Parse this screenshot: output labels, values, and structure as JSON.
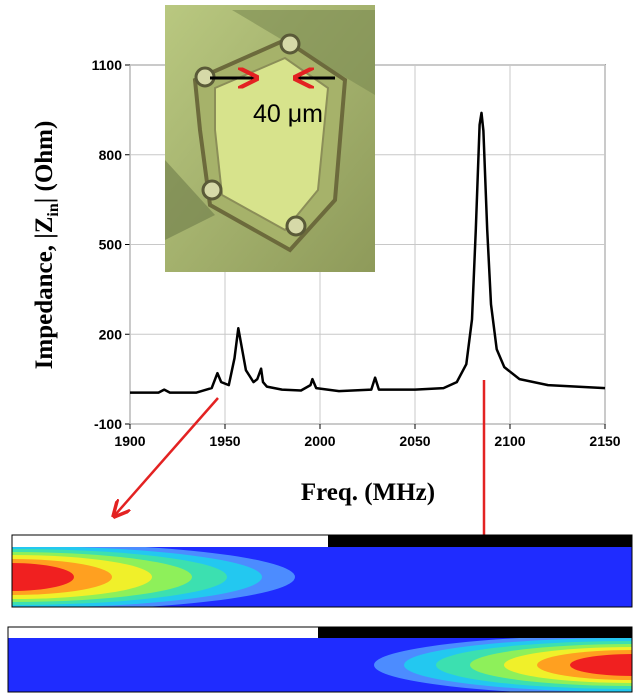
{
  "chart_data": {
    "type": "line",
    "y_label": {
      "main": "Impedance, |Z",
      "sub": "in",
      "tail": "| (Ohm)"
    },
    "x_label": "Freq. (MHz)",
    "annotation": "40 μm",
    "x": [
      1900,
      1915,
      1918,
      1921,
      1935,
      1943,
      1946,
      1948,
      1952,
      1955,
      1957,
      1959,
      1961,
      1963,
      1965,
      1967,
      1969,
      1970,
      1972,
      1980,
      1990,
      1995,
      1996,
      1998,
      2010,
      2027,
      2029,
      2031,
      2050,
      2065,
      2072,
      2077,
      2080,
      2082,
      2084,
      2085,
      2086,
      2088,
      2090,
      2093,
      2097,
      2105,
      2120,
      2135,
      2150
    ],
    "series": [
      {
        "color": "#000000",
        "values": [
          5,
          5,
          15,
          5,
          5,
          20,
          70,
          40,
          30,
          120,
          220,
          150,
          80,
          60,
          40,
          50,
          85,
          40,
          25,
          15,
          12,
          30,
          50,
          20,
          10,
          15,
          55,
          15,
          15,
          20,
          40,
          100,
          250,
          550,
          900,
          940,
          880,
          550,
          300,
          150,
          90,
          50,
          30,
          25,
          20
        ]
      }
    ],
    "xlim": [
      1900,
      2150
    ],
    "xticks": [
      1900,
      1950,
      2000,
      2050,
      2100,
      2150
    ],
    "ylim": [
      -100,
      1100
    ],
    "yticks": [
      -100,
      200,
      500,
      800,
      1100
    ],
    "grid": true
  }
}
